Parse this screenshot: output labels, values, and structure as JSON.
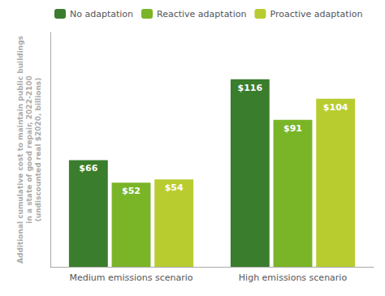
{
  "chart_data": {
    "type": "bar",
    "categories": [
      "Medium emissions scenario",
      "High emissions scenario"
    ],
    "series": [
      {
        "name": "No adaptation",
        "color": "#3a7d2c",
        "values": [
          66,
          116
        ],
        "value_labels": [
          "$66",
          "$116"
        ]
      },
      {
        "name": "Reactive adaptation",
        "color": "#7ab528",
        "values": [
          52,
          91
        ],
        "value_labels": [
          "$52",
          "$91"
        ]
      },
      {
        "name": "Proactive adaptation",
        "color": "#b8cc30",
        "values": [
          54,
          104
        ],
        "value_labels": [
          "$54",
          "$104"
        ]
      }
    ],
    "ylabel": "Additional cumulative cost to maintain public buildings\nin a state of good repair, 2022-2100\n(undiscounted real $2020, billions)",
    "ylim": [
      0,
      145
    ],
    "tick_labels": "x",
    "data_labels": true,
    "legend": "upper left",
    "grid": false
  }
}
